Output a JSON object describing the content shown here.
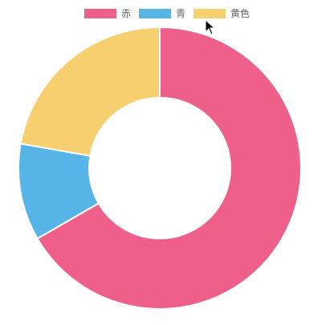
{
  "chart_data": {
    "type": "doughnut",
    "categories": [
      "赤",
      "青",
      "黄色"
    ],
    "values": [
      300,
      50,
      100
    ],
    "colors": [
      "#ee5f8a",
      "#56b4e6",
      "#f6d06e"
    ],
    "legend_position": "top",
    "cutout": "50%"
  },
  "icons": {
    "cursor": "mouse-pointer-icon"
  }
}
